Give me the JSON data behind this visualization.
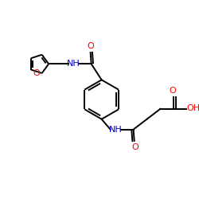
{
  "bg_color": "#ffffff",
  "bond_color": "#000000",
  "O_color": "#ff0000",
  "N_color": "#0000cc",
  "line_width": 1.4,
  "figsize": [
    2.5,
    2.5
  ],
  "dpi": 100,
  "xlim": [
    0,
    10
  ],
  "ylim": [
    0,
    10
  ]
}
